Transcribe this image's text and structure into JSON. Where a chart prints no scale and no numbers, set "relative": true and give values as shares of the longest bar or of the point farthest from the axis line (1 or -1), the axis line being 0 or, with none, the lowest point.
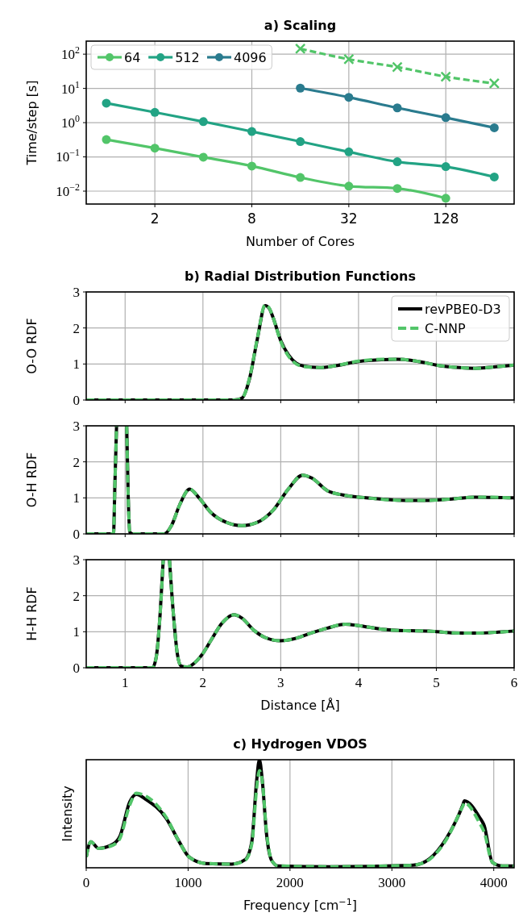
{
  "chart_data": [
    {
      "type": "line",
      "title": "a) Scaling",
      "xlabel": "Number of Cores",
      "ylabel": "Time/step [s]",
      "log": "xy",
      "grid": true,
      "legend": "top left",
      "marker": "circle",
      "line_style": "solid",
      "xlim": [
        0.75,
        340
      ],
      "xticks": [
        2,
        8,
        32,
        128
      ],
      "ylim": [
        0.0042,
        240
      ],
      "yticks": [
        {
          "value": 0.01,
          "label": "10$^{−2}$"
        },
        {
          "value": 0.1,
          "label": "10$^{−1}$"
        },
        {
          "value": 1,
          "label": "10$^{0}$"
        },
        {
          "value": 10,
          "label": "10$^{1}$"
        },
        {
          "value": 100,
          "label": "10$^{2}$"
        }
      ],
      "series": [
        {
          "name": "64",
          "color": "#52c569",
          "x": [
            1,
            2,
            4,
            8,
            16,
            32,
            64,
            128
          ],
          "values": [
            0.32,
            0.18,
            0.098,
            0.054,
            0.025,
            0.014,
            0.012,
            0.0062
          ]
        },
        {
          "name": "512",
          "color": "#22a384",
          "x": [
            1,
            2,
            4,
            8,
            16,
            32,
            64,
            128,
            256
          ],
          "values": [
            3.7,
            2.0,
            1.07,
            0.55,
            0.28,
            0.14,
            0.072,
            0.052,
            0.026
          ]
        },
        {
          "name": "4096",
          "color": "#2a7b8e",
          "x": [
            16,
            32,
            64,
            128,
            256
          ],
          "values": [
            10.2,
            5.5,
            2.7,
            1.4,
            0.71
          ]
        },
        {
          "color": "#52c569",
          "x": [
            16,
            32,
            64,
            128,
            256
          ],
          "values": [
            144,
            71,
            42,
            22,
            14
          ],
          "marker": "cross",
          "line_style": "dashed"
        }
      ]
    },
    {
      "type": "line",
      "title": "b) Radial Distribution Functions",
      "ylabel": "O-O RDF",
      "grid": true,
      "legend": "top right",
      "tick_labels": "y",
      "xlim": [
        0.5,
        6
      ],
      "xticks": [
        1,
        2,
        3,
        4,
        5,
        6
      ],
      "ylim": [
        0,
        3
      ],
      "yticks": [
        0,
        1,
        2,
        3
      ],
      "x": [
        0.5,
        2.4,
        2.5,
        2.6,
        2.7,
        2.8,
        2.85,
        2.9,
        3.0,
        3.1,
        3.2,
        3.3,
        3.5,
        3.7,
        4.0,
        4.3,
        4.5,
        4.8,
        5.0,
        5.3,
        5.5,
        5.8,
        6.0
      ],
      "series": [
        {
          "name": "revPBE0-D3",
          "color": "#000000",
          "line_style": "solid",
          "values": [
            0,
            0,
            0.05,
            0.6,
            1.7,
            2.62,
            2.55,
            2.3,
            1.65,
            1.25,
            1.02,
            0.94,
            0.9,
            0.95,
            1.07,
            1.12,
            1.13,
            1.06,
            0.97,
            0.9,
            0.88,
            0.93,
            0.97
          ]
        },
        {
          "name": "C-NNP",
          "color": "#52c569",
          "line_style": "dashed",
          "values": [
            0,
            0,
            0.05,
            0.62,
            1.72,
            2.64,
            2.56,
            2.3,
            1.63,
            1.22,
            1.0,
            0.93,
            0.9,
            0.95,
            1.08,
            1.13,
            1.13,
            1.06,
            0.97,
            0.9,
            0.88,
            0.93,
            0.97
          ]
        }
      ]
    },
    {
      "type": "line",
      "ylabel": "O-H RDF",
      "grid": true,
      "tick_labels": "y",
      "xlim": [
        0.5,
        6
      ],
      "xticks": [
        1,
        2,
        3,
        4,
        5,
        6
      ],
      "ylim": [
        0,
        3
      ],
      "yticks": [
        0,
        1,
        2,
        3
      ],
      "x": [
        0.5,
        0.85,
        0.87,
        0.89,
        0.95,
        1.02,
        1.04,
        1.06,
        1.1,
        1.5,
        1.6,
        1.7,
        1.83,
        1.95,
        2.1,
        2.3,
        2.5,
        2.7,
        2.9,
        3.1,
        3.28,
        3.4,
        3.6,
        3.8,
        4.1,
        4.6,
        4.9,
        5.2,
        5.5,
        6.0
      ],
      "series": [
        {
          "color": "#000000",
          "line_style": "solid",
          "values": [
            0,
            0,
            1.5,
            3,
            null,
            3,
            1,
            0.05,
            0,
            0,
            0.25,
            0.8,
            1.24,
            1.0,
            0.6,
            0.32,
            0.23,
            0.32,
            0.65,
            1.25,
            1.63,
            1.55,
            1.2,
            1.08,
            1.0,
            0.93,
            0.93,
            0.97,
            1.02,
            1.0
          ]
        },
        {
          "color": "#52c569",
          "line_style": "dashed",
          "values": [
            0,
            0,
            1.5,
            3,
            null,
            3,
            1,
            0.05,
            0,
            0,
            0.25,
            0.8,
            1.24,
            1.0,
            0.6,
            0.32,
            0.23,
            0.32,
            0.65,
            1.25,
            1.63,
            1.55,
            1.2,
            1.08,
            1.0,
            0.93,
            0.93,
            0.97,
            1.02,
            1.0
          ]
        }
      ]
    },
    {
      "type": "line",
      "ylabel": "H-H RDF",
      "xlabel": "Distance [Å]",
      "grid": true,
      "xlim": [
        0.5,
        6
      ],
      "xticks": [
        1,
        2,
        3,
        4,
        5,
        6
      ],
      "ylim": [
        0,
        3
      ],
      "yticks": [
        0,
        1,
        2,
        3
      ],
      "x": [
        0.5,
        1.35,
        1.4,
        1.45,
        1.49,
        1.53,
        1.57,
        1.62,
        1.67,
        1.72,
        1.8,
        1.9,
        2.0,
        2.1,
        2.25,
        2.4,
        2.5,
        2.65,
        2.8,
        3.0,
        3.2,
        3.4,
        3.6,
        3.83,
        4.0,
        4.3,
        4.6,
        4.9,
        5.2,
        5.5,
        5.8,
        6.0
      ],
      "series": [
        {
          "color": "#000000",
          "line_style": "solid",
          "values": [
            0,
            0,
            0.3,
            1.5,
            3,
            null,
            3,
            1.5,
            0.4,
            0.05,
            0.02,
            0.15,
            0.4,
            0.75,
            1.25,
            1.47,
            1.38,
            1.05,
            0.84,
            0.75,
            0.82,
            0.97,
            1.1,
            1.21,
            1.17,
            1.07,
            1.03,
            1.02,
            0.97,
            0.96,
            0.99,
            1.02
          ]
        },
        {
          "color": "#52c569",
          "line_style": "dashed",
          "values": [
            0,
            0,
            0.3,
            1.5,
            3,
            null,
            3,
            1.5,
            0.4,
            0.05,
            0.02,
            0.15,
            0.4,
            0.75,
            1.25,
            1.47,
            1.38,
            1.05,
            0.84,
            0.75,
            0.82,
            0.97,
            1.1,
            1.21,
            1.17,
            1.07,
            1.03,
            1.02,
            0.97,
            0.96,
            0.99,
            1.02
          ]
        }
      ]
    },
    {
      "type": "line",
      "title": "c) Hydrogen VDOS",
      "xlabel": "Frequency [cm$^{−1}$]",
      "ylabel": "Intensity",
      "relative": true,
      "grid": "x",
      "xlim": [
        0,
        4200
      ],
      "xticks": [
        0,
        1000,
        2000,
        3000,
        4000
      ],
      "x": [
        0,
        45,
        120,
        265,
        330,
        427,
        492,
        590,
        783,
        913,
        1010,
        1172,
        1430,
        1560,
        1625,
        1673,
        1700,
        1728,
        1770,
        1819,
        1883,
        2400,
        3210,
        3372,
        3534,
        3696,
        3712,
        3858,
        3906,
        3987,
        4084,
        4197
      ],
      "series": [
        {
          "color": "#000000",
          "line_style": "solid",
          "values": [
            0.1,
            0.24,
            0.18,
            0.22,
            0.29,
            0.61,
            0.68,
            0.63,
            0.46,
            0.24,
            0.1,
            0.04,
            0.034,
            0.075,
            0.24,
            0.81,
            1.0,
            0.81,
            0.31,
            0.07,
            0.017,
            0.01,
            0.024,
            0.085,
            0.27,
            0.58,
            0.62,
            0.47,
            0.39,
            0.05,
            0.017,
            0.017
          ]
        },
        {
          "color": "#52c569",
          "line_style": "dashed",
          "values": [
            0.1,
            0.24,
            0.18,
            0.21,
            0.27,
            0.58,
            0.69,
            0.66,
            0.47,
            0.24,
            0.1,
            0.04,
            0.034,
            0.07,
            0.22,
            0.74,
            0.9,
            0.8,
            0.33,
            0.07,
            0.017,
            0.01,
            0.024,
            0.08,
            0.26,
            0.57,
            0.6,
            0.42,
            0.33,
            0.05,
            0.017,
            0.017
          ]
        }
      ]
    }
  ]
}
